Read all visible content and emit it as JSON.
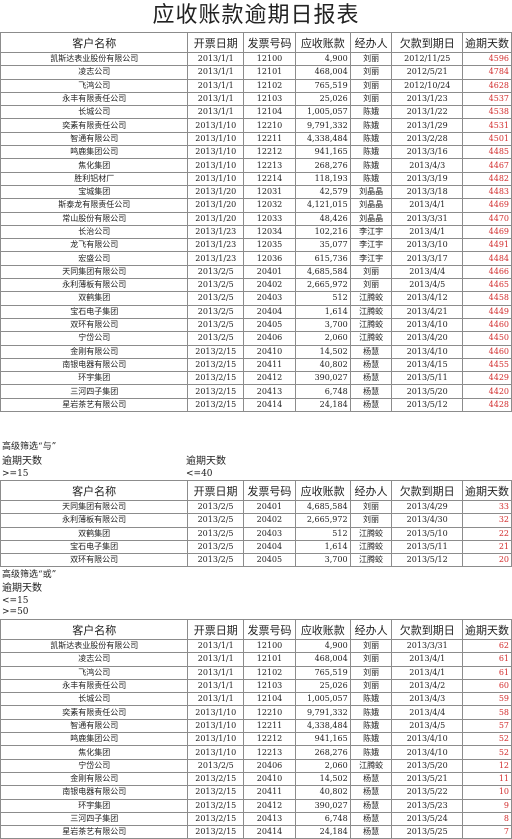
{
  "title": "应收账款逾期日报表",
  "headers": [
    "客户名称",
    "开票日期",
    "发票号码",
    "应收账款",
    "经办人",
    "欠款到期日",
    "逾期天数"
  ],
  "main_rows": [
    [
      "凯斯达表业股份有限公司",
      "2013/1/1",
      "12100",
      "4,900",
      "刘丽",
      "2012/11/25",
      "4596"
    ],
    [
      "凌志公司",
      "2013/1/1",
      "12101",
      "468,004",
      "刘丽",
      "2012/5/21",
      "4784"
    ],
    [
      "飞鸿公司",
      "2013/1/1",
      "12102",
      "765,519",
      "刘丽",
      "2012/10/24",
      "4628"
    ],
    [
      "永丰有限责任公司",
      "2013/1/1",
      "12103",
      "25,026",
      "刘丽",
      "2013/1/23",
      "4537"
    ],
    [
      "长城公司",
      "2013/1/1",
      "12104",
      "1,005,057",
      "陈娥",
      "2013/1/22",
      "4538"
    ],
    [
      "奕素有限责任公司",
      "2013/1/10",
      "12210",
      "9,791,332",
      "陈娥",
      "2013/1/29",
      "4531"
    ],
    [
      "智通有限公司",
      "2013/1/10",
      "12211",
      "4,338,484",
      "陈娥",
      "2013/2/28",
      "4501"
    ],
    [
      "鸣鹿集团公司",
      "2013/1/10",
      "12212",
      "941,165",
      "陈娥",
      "2013/3/16",
      "4485"
    ],
    [
      "焦化集团",
      "2013/1/10",
      "12213",
      "268,276",
      "陈娥",
      "2013/4/3",
      "4467"
    ],
    [
      "胜利铝材厂",
      "2013/1/10",
      "12214",
      "118,193",
      "陈娥",
      "2013/3/19",
      "4482"
    ],
    [
      "宝城集团",
      "2013/1/20",
      "12031",
      "42,579",
      "刘晶晶",
      "2013/3/18",
      "4483"
    ],
    [
      "斯泰龙有限责任公司",
      "2013/1/20",
      "12032",
      "4,121,015",
      "刘晶晶",
      "2013/4/1",
      "4469"
    ],
    [
      "常山股份有限公司",
      "2013/1/20",
      "12033",
      "48,426",
      "刘晶晶",
      "2013/3/31",
      "4470"
    ],
    [
      "长治公司",
      "2013/1/23",
      "12034",
      "102,216",
      "李江宇",
      "2013/4/1",
      "4469"
    ],
    [
      "龙飞有限公司",
      "2013/1/23",
      "12035",
      "35,077",
      "李江宇",
      "2013/3/10",
      "4491"
    ],
    [
      "宏盛公司",
      "2013/1/23",
      "12036",
      "615,736",
      "李江宇",
      "2013/3/17",
      "4484"
    ],
    [
      "天同集团有限公司",
      "2013/2/5",
      "20401",
      "4,685,584",
      "刘丽",
      "2013/4/4",
      "4466"
    ],
    [
      "永利薄板有限公司",
      "2013/2/5",
      "20402",
      "2,665,972",
      "刘丽",
      "2013/4/5",
      "4465"
    ],
    [
      "双鹤集团",
      "2013/2/5",
      "20403",
      "512",
      "江腾蛟",
      "2013/4/12",
      "4458"
    ],
    [
      "宝石电子集团",
      "2013/2/5",
      "20404",
      "1,614",
      "江腾蛟",
      "2013/4/21",
      "4449"
    ],
    [
      "双环有限公司",
      "2013/2/5",
      "20405",
      "3,700",
      "江腾蛟",
      "2013/4/10",
      "4460"
    ],
    [
      "宁岱公司",
      "2013/2/5",
      "20406",
      "2,060",
      "江腾蛟",
      "2013/4/20",
      "4450"
    ],
    [
      "金刚有限公司",
      "2013/2/15",
      "20410",
      "14,502",
      "杨慧",
      "2013/4/10",
      "4460"
    ],
    [
      "南银电器有限公司",
      "2013/2/15",
      "20411",
      "40,802",
      "杨慧",
      "2013/4/15",
      "4455"
    ],
    [
      "环宇集团",
      "2013/2/15",
      "20412",
      "390,027",
      "杨慧",
      "2013/5/11",
      "4429"
    ],
    [
      "三河四子集团",
      "2013/2/15",
      "20413",
      "6,748",
      "杨慧",
      "2013/5/20",
      "4420"
    ],
    [
      "星岩茶艺有限公司",
      "2013/2/15",
      "20414",
      "24,184",
      "杨慧",
      "2013/5/12",
      "4428"
    ]
  ],
  "and_filter": {
    "label": "高级筛选“与”",
    "crit1_header": "逾期天数",
    "crit1_value": ">=15",
    "crit2_header": "逾期天数",
    "crit2_value": "<=40",
    "rows": [
      [
        "天同集团有限公司",
        "2013/2/5",
        "20401",
        "4,685,584",
        "刘丽",
        "2013/4/29",
        "33"
      ],
      [
        "永利薄板有限公司",
        "2013/2/5",
        "20402",
        "2,665,972",
        "刘丽",
        "2013/4/30",
        "32"
      ],
      [
        "双鹤集团",
        "2013/2/5",
        "20403",
        "512",
        "江腾蛟",
        "2013/5/10",
        "22"
      ],
      [
        "宝石电子集团",
        "2013/2/5",
        "20404",
        "1,614",
        "江腾蛟",
        "2013/5/11",
        "21"
      ],
      [
        "双环有限公司",
        "2013/2/5",
        "20405",
        "3,700",
        "江腾蛟",
        "2013/5/12",
        "20"
      ]
    ]
  },
  "or_filter": {
    "label": "高级筛选“或”",
    "crit_header": "逾期天数",
    "crit1_value": "<=15",
    "crit2_value": ">=50",
    "rows": [
      [
        "凯斯达表业股份有限公司",
        "2013/1/1",
        "12100",
        "4,900",
        "刘丽",
        "2013/3/31",
        "62"
      ],
      [
        "凌志公司",
        "2013/1/1",
        "12101",
        "468,004",
        "刘丽",
        "2013/4/1",
        "61"
      ],
      [
        "飞鸿公司",
        "2013/1/1",
        "12102",
        "765,519",
        "刘丽",
        "2013/4/1",
        "61"
      ],
      [
        "永丰有限责任公司",
        "2013/1/1",
        "12103",
        "25,026",
        "刘丽",
        "2013/4/2",
        "60"
      ],
      [
        "长城公司",
        "2013/1/1",
        "12104",
        "1,005,057",
        "陈娥",
        "2013/4/3",
        "59"
      ],
      [
        "奕素有限责任公司",
        "2013/1/10",
        "12210",
        "9,791,332",
        "陈娥",
        "2013/4/4",
        "58"
      ],
      [
        "智通有限公司",
        "2013/1/10",
        "12211",
        "4,338,484",
        "陈娥",
        "2013/4/5",
        "57"
      ],
      [
        "鸣鹿集团公司",
        "2013/1/10",
        "12212",
        "941,165",
        "陈娥",
        "2013/4/10",
        "52"
      ],
      [
        "焦化集团",
        "2013/1/10",
        "12213",
        "268,276",
        "陈娥",
        "2013/4/10",
        "52"
      ],
      [
        "宁岱公司",
        "2013/2/5",
        "20406",
        "2,060",
        "江腾蛟",
        "2013/5/20",
        "12"
      ],
      [
        "金刚有限公司",
        "2013/2/15",
        "20410",
        "14,502",
        "杨慧",
        "2013/5/21",
        "11"
      ],
      [
        "南银电器有限公司",
        "2013/2/15",
        "20411",
        "40,802",
        "杨慧",
        "2013/5/22",
        "10"
      ],
      [
        "环宇集团",
        "2013/2/15",
        "20412",
        "390,027",
        "杨慧",
        "2013/5/23",
        "9"
      ],
      [
        "三河四子集团",
        "2013/2/15",
        "20413",
        "6,748",
        "杨慧",
        "2013/5/24",
        "8"
      ],
      [
        "星岩茶艺有限公司",
        "2013/2/15",
        "20414",
        "24,184",
        "杨慧",
        "2013/5/25",
        "7"
      ]
    ]
  },
  "colors": {
    "overdue_days": "#d32f2f",
    "grid": "#8c8c8c"
  }
}
